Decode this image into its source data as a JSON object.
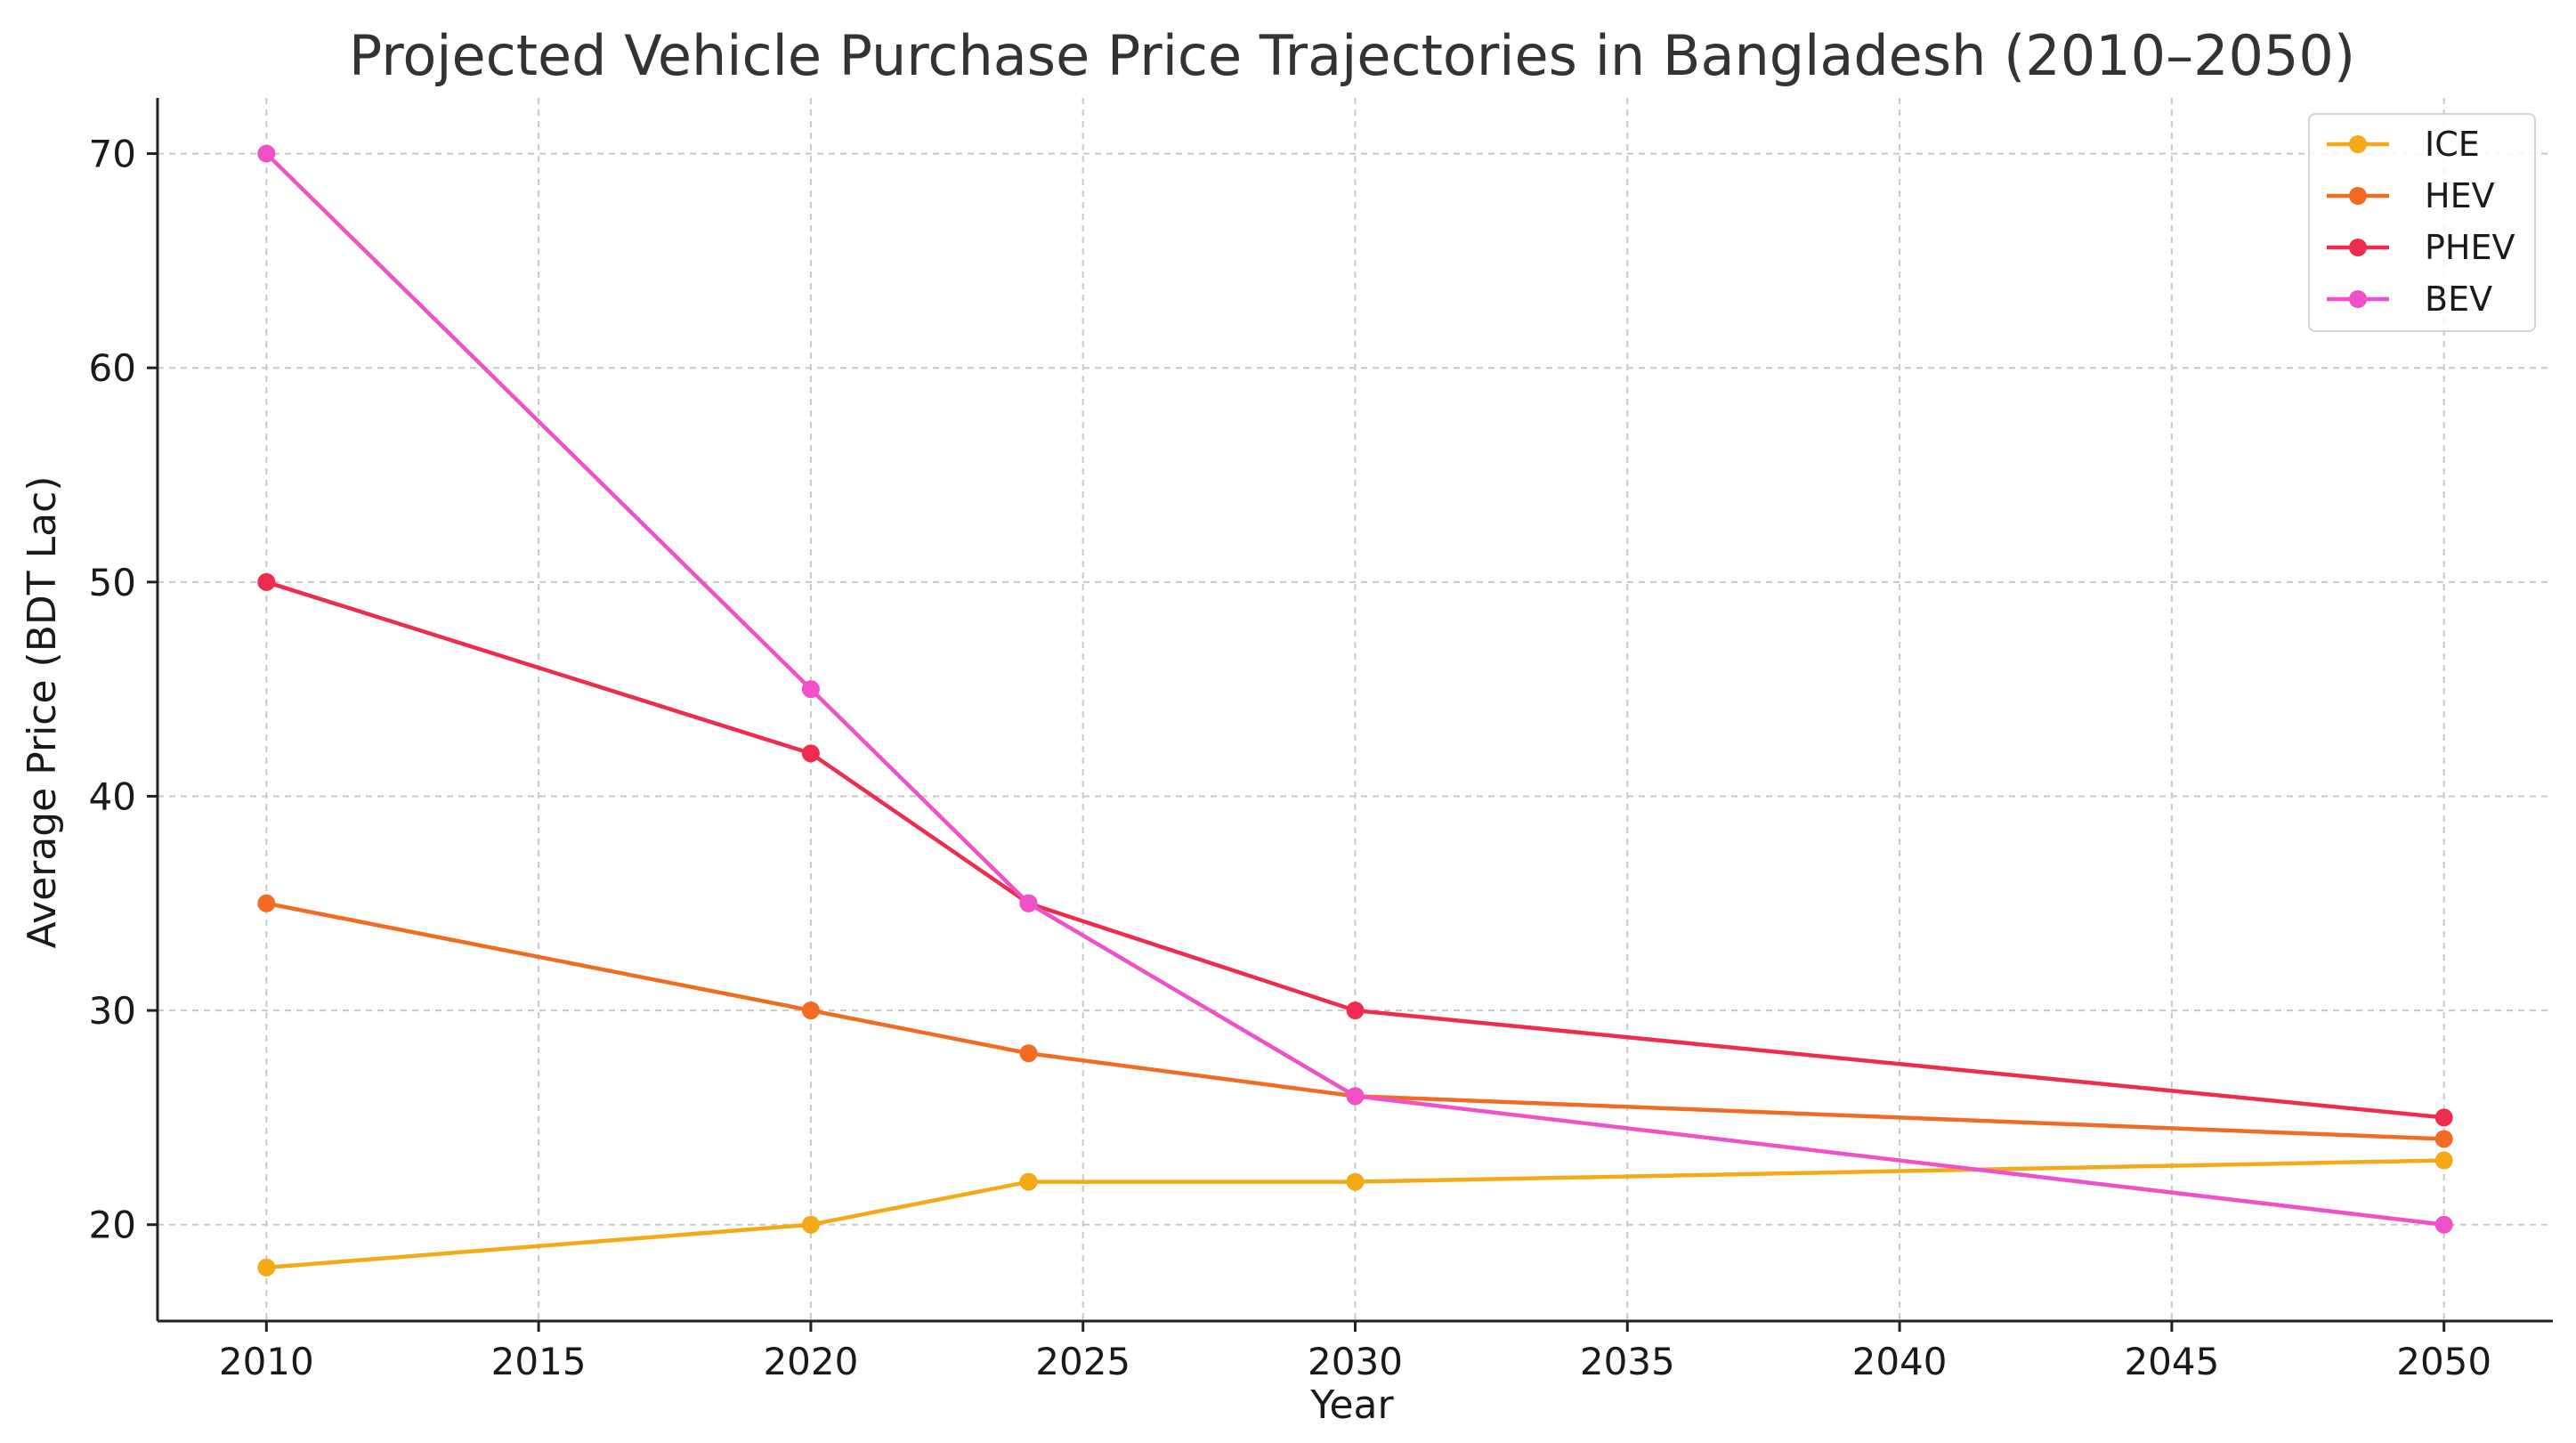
{
  "chart_data": {
    "type": "line",
    "title": "Projected Vehicle Purchase Price Trajectories in Bangladesh (2010–2050)",
    "xlabel": "Year",
    "ylabel": "Average Price (BDT Lac)",
    "xlim": [
      2008,
      2052
    ],
    "ylim": [
      15.5,
      72.6
    ],
    "xticks": [
      2010,
      2015,
      2020,
      2025,
      2030,
      2035,
      2040,
      2045,
      2050
    ],
    "yticks": [
      20,
      30,
      40,
      50,
      60,
      70
    ],
    "grid": true,
    "legend_position": "top-right",
    "x": [
      2010,
      2020,
      2024,
      2030,
      2050
    ],
    "series": [
      {
        "name": "ICE",
        "color": "#F5A916",
        "values": [
          18,
          20,
          22,
          22,
          23
        ]
      },
      {
        "name": "HEV",
        "color": "#F26B22",
        "values": [
          35,
          30,
          28,
          26,
          24
        ]
      },
      {
        "name": "PHEV",
        "color": "#EE2D4E",
        "values": [
          50,
          42,
          35,
          30,
          25
        ]
      },
      {
        "name": "BEV",
        "color": "#F050C8",
        "values": [
          70,
          45,
          35,
          26,
          20
        ]
      }
    ]
  }
}
